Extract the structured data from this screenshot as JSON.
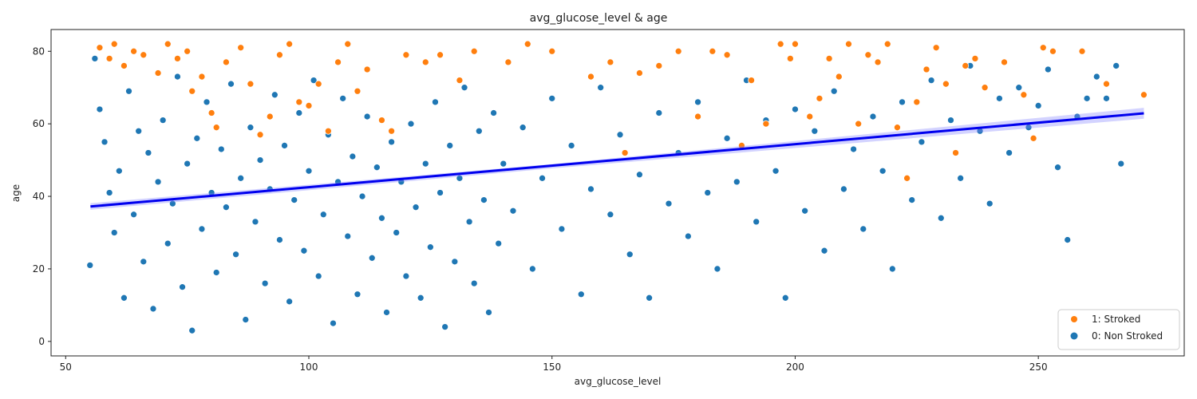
{
  "chart_data": {
    "type": "scatter",
    "title": "avg_glucose_level & age",
    "xlabel": "avg_glucose_level",
    "ylabel": "age",
    "xlim": [
      47,
      280
    ],
    "ylim": [
      -4,
      86
    ],
    "xticks": [
      50,
      100,
      150,
      200,
      250
    ],
    "yticks": [
      0,
      20,
      40,
      60,
      80
    ],
    "grid": false,
    "legend_position": "bottom-right",
    "point_colors": {
      "stroked": "#ff7f0e",
      "non_stroked": "#1f77b4"
    },
    "trendline_color": "#0000ee",
    "trendline_band_color": "#8080ff",
    "legend": [
      {
        "label": "1: Stroked",
        "color": "#ff7f0e"
      },
      {
        "label": "0: Non Stroked",
        "color": "#1f77b4"
      }
    ],
    "trendline": {
      "x": [
        55.1,
        271.7
      ],
      "y": [
        37.2,
        62.9
      ],
      "band_ci": [
        [
          55.1,
          36.3,
          38.1
        ],
        [
          150,
          47.7,
          48.9
        ],
        [
          271.7,
          61.4,
          64.4
        ]
      ]
    },
    "series": [
      {
        "name": "1: Stroked",
        "points": [
          [
            57,
            81
          ],
          [
            59,
            78
          ],
          [
            60,
            82
          ],
          [
            62,
            76
          ],
          [
            64,
            80
          ],
          [
            66,
            79
          ],
          [
            69,
            74
          ],
          [
            71,
            82
          ],
          [
            73,
            78
          ],
          [
            75,
            80
          ],
          [
            76,
            69
          ],
          [
            78,
            73
          ],
          [
            80,
            63
          ],
          [
            81,
            59
          ],
          [
            83,
            77
          ],
          [
            86,
            81
          ],
          [
            88,
            71
          ],
          [
            90,
            57
          ],
          [
            92,
            62
          ],
          [
            94,
            79
          ],
          [
            96,
            82
          ],
          [
            98,
            66
          ],
          [
            100,
            65
          ],
          [
            102,
            71
          ],
          [
            104,
            58
          ],
          [
            106,
            77
          ],
          [
            108,
            82
          ],
          [
            110,
            69
          ],
          [
            112,
            75
          ],
          [
            115,
            61
          ],
          [
            117,
            58
          ],
          [
            120,
            79
          ],
          [
            124,
            77
          ],
          [
            127,
            79
          ],
          [
            131,
            72
          ],
          [
            134,
            80
          ],
          [
            141,
            77
          ],
          [
            145,
            82
          ],
          [
            150,
            80
          ],
          [
            158,
            73
          ],
          [
            162,
            77
          ],
          [
            165,
            52
          ],
          [
            168,
            74
          ],
          [
            172,
            76
          ],
          [
            176,
            80
          ],
          [
            180,
            62
          ],
          [
            183,
            80
          ],
          [
            186,
            79
          ],
          [
            189,
            54
          ],
          [
            191,
            72
          ],
          [
            194,
            60
          ],
          [
            197,
            82
          ],
          [
            199,
            78
          ],
          [
            200,
            82
          ],
          [
            203,
            62
          ],
          [
            205,
            67
          ],
          [
            207,
            78
          ],
          [
            209,
            73
          ],
          [
            211,
            82
          ],
          [
            213,
            60
          ],
          [
            215,
            79
          ],
          [
            217,
            77
          ],
          [
            219,
            82
          ],
          [
            221,
            59
          ],
          [
            223,
            45
          ],
          [
            225,
            66
          ],
          [
            227,
            75
          ],
          [
            229,
            81
          ],
          [
            231,
            71
          ],
          [
            233,
            52
          ],
          [
            235,
            76
          ],
          [
            237,
            78
          ],
          [
            239,
            70
          ],
          [
            243,
            77
          ],
          [
            247,
            68
          ],
          [
            249,
            56
          ],
          [
            251,
            81
          ],
          [
            253,
            80
          ],
          [
            259,
            80
          ],
          [
            264,
            71
          ],
          [
            271.7,
            68
          ]
        ]
      },
      {
        "name": "0: Non Stroked",
        "points": [
          [
            55,
            21
          ],
          [
            56,
            78
          ],
          [
            57,
            64
          ],
          [
            58,
            55
          ],
          [
            59,
            41
          ],
          [
            60,
            30
          ],
          [
            61,
            47
          ],
          [
            62,
            12
          ],
          [
            63,
            69
          ],
          [
            64,
            35
          ],
          [
            65,
            58
          ],
          [
            66,
            22
          ],
          [
            67,
            52
          ],
          [
            68,
            9
          ],
          [
            69,
            44
          ],
          [
            70,
            61
          ],
          [
            71,
            27
          ],
          [
            72,
            38
          ],
          [
            73,
            73
          ],
          [
            74,
            15
          ],
          [
            75,
            49
          ],
          [
            76,
            3
          ],
          [
            77,
            56
          ],
          [
            78,
            31
          ],
          [
            79,
            66
          ],
          [
            80,
            41
          ],
          [
            81,
            19
          ],
          [
            82,
            53
          ],
          [
            83,
            37
          ],
          [
            84,
            71
          ],
          [
            85,
            24
          ],
          [
            86,
            45
          ],
          [
            87,
            6
          ],
          [
            88,
            59
          ],
          [
            89,
            33
          ],
          [
            90,
            50
          ],
          [
            91,
            16
          ],
          [
            92,
            42
          ],
          [
            93,
            68
          ],
          [
            94,
            28
          ],
          [
            95,
            54
          ],
          [
            96,
            11
          ],
          [
            97,
            39
          ],
          [
            98,
            63
          ],
          [
            99,
            25
          ],
          [
            100,
            47
          ],
          [
            101,
            72
          ],
          [
            102,
            18
          ],
          [
            103,
            35
          ],
          [
            104,
            57
          ],
          [
            105,
            5
          ],
          [
            106,
            44
          ],
          [
            107,
            67
          ],
          [
            108,
            29
          ],
          [
            109,
            51
          ],
          [
            110,
            13
          ],
          [
            111,
            40
          ],
          [
            112,
            62
          ],
          [
            113,
            23
          ],
          [
            114,
            48
          ],
          [
            115,
            34
          ],
          [
            116,
            8
          ],
          [
            117,
            55
          ],
          [
            118,
            30
          ],
          [
            119,
            44
          ],
          [
            120,
            18
          ],
          [
            121,
            60
          ],
          [
            122,
            37
          ],
          [
            123,
            12
          ],
          [
            124,
            49
          ],
          [
            125,
            26
          ],
          [
            126,
            66
          ],
          [
            127,
            41
          ],
          [
            128,
            4
          ],
          [
            129,
            54
          ],
          [
            130,
            22
          ],
          [
            131,
            45
          ],
          [
            132,
            70
          ],
          [
            133,
            33
          ],
          [
            134,
            16
          ],
          [
            135,
            58
          ],
          [
            136,
            39
          ],
          [
            137,
            8
          ],
          [
            138,
            63
          ],
          [
            139,
            27
          ],
          [
            140,
            49
          ],
          [
            142,
            36
          ],
          [
            144,
            59
          ],
          [
            146,
            20
          ],
          [
            148,
            45
          ],
          [
            150,
            67
          ],
          [
            152,
            31
          ],
          [
            154,
            54
          ],
          [
            156,
            13
          ],
          [
            158,
            42
          ],
          [
            160,
            70
          ],
          [
            162,
            35
          ],
          [
            164,
            57
          ],
          [
            166,
            24
          ],
          [
            168,
            46
          ],
          [
            170,
            12
          ],
          [
            172,
            63
          ],
          [
            174,
            38
          ],
          [
            176,
            52
          ],
          [
            178,
            29
          ],
          [
            180,
            66
          ],
          [
            182,
            41
          ],
          [
            184,
            20
          ],
          [
            186,
            56
          ],
          [
            188,
            44
          ],
          [
            190,
            72
          ],
          [
            192,
            33
          ],
          [
            194,
            61
          ],
          [
            196,
            47
          ],
          [
            198,
            12
          ],
          [
            200,
            64
          ],
          [
            202,
            36
          ],
          [
            204,
            58
          ],
          [
            206,
            25
          ],
          [
            208,
            69
          ],
          [
            210,
            42
          ],
          [
            212,
            53
          ],
          [
            214,
            31
          ],
          [
            216,
            62
          ],
          [
            218,
            47
          ],
          [
            220,
            20
          ],
          [
            222,
            66
          ],
          [
            224,
            39
          ],
          [
            226,
            55
          ],
          [
            228,
            72
          ],
          [
            230,
            34
          ],
          [
            232,
            61
          ],
          [
            234,
            45
          ],
          [
            236,
            76
          ],
          [
            238,
            58
          ],
          [
            240,
            38
          ],
          [
            242,
            67
          ],
          [
            244,
            52
          ],
          [
            246,
            70
          ],
          [
            248,
            59
          ],
          [
            250,
            65
          ],
          [
            252,
            75
          ],
          [
            254,
            48
          ],
          [
            256,
            28
          ],
          [
            258,
            62
          ],
          [
            260,
            67
          ],
          [
            262,
            73
          ],
          [
            264,
            67
          ],
          [
            266,
            76
          ],
          [
            267,
            49
          ]
        ]
      }
    ]
  }
}
